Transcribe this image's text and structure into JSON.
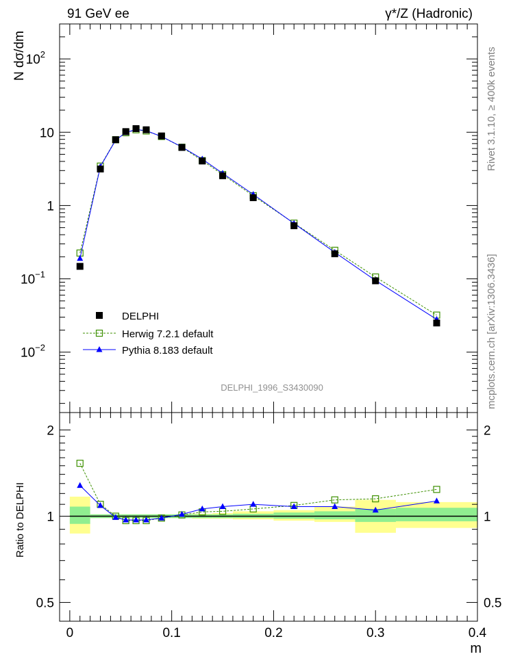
{
  "header": {
    "left_title": "91 GeV ee",
    "right_title": "γ*/Z (Hadronic)"
  },
  "side_labels": {
    "rivet": "Rivet 3.1.10, ≥ 400k events",
    "mcplots": "mcplots.cern.ch [arXiv:1306.3436]"
  },
  "watermark": "DELPHI_1996_S3430090",
  "chart_data": [
    {
      "type": "scatter",
      "panel": "main",
      "ylabel": "N dσ/dm",
      "yscale": "log",
      "ylim": [
        0.0015,
        300
      ],
      "xlim": [
        -0.01,
        0.4
      ],
      "ytick_labels": [
        {
          "value": 0.01,
          "base": "10",
          "exp": "−2"
        },
        {
          "value": 0.1,
          "base": "10",
          "exp": "−1"
        },
        {
          "value": 1,
          "base": "1",
          "exp": ""
        },
        {
          "value": 10,
          "base": "10",
          "exp": ""
        },
        {
          "value": 100,
          "base": "10",
          "exp": "2"
        }
      ],
      "legend": [
        "DELPHI",
        "Herwig 7.2.1 default",
        "Pythia 8.183 default"
      ],
      "x": [
        0.01,
        0.03,
        0.045,
        0.055,
        0.065,
        0.075,
        0.09,
        0.11,
        0.13,
        0.15,
        0.18,
        0.22,
        0.26,
        0.3,
        0.36
      ],
      "series": [
        {
          "name": "DELPHI",
          "color": "#000000",
          "marker": "square-filled",
          "values": [
            0.148,
            3.15,
            7.9,
            10.2,
            11.2,
            10.8,
            8.9,
            6.2,
            4.05,
            2.55,
            1.28,
            0.53,
            0.22,
            0.094,
            0.025
          ]
        },
        {
          "name": "Herwig 7.2.1 default",
          "color": "#3c8f00",
          "marker": "square-open",
          "line": "dashed",
          "values": [
            0.225,
            3.45,
            7.9,
            9.85,
            10.8,
            10.4,
            8.75,
            6.25,
            4.1,
            2.65,
            1.36,
            0.575,
            0.245,
            0.106,
            0.032
          ]
        },
        {
          "name": "Pythia 8.183 default",
          "color": "#0000ff",
          "marker": "triangle-filled",
          "line": "solid",
          "values": [
            0.19,
            3.4,
            7.8,
            9.9,
            10.9,
            10.5,
            8.75,
            6.3,
            4.3,
            2.75,
            1.42,
            0.57,
            0.23,
            0.095,
            0.028
          ]
        }
      ]
    },
    {
      "type": "scatter",
      "panel": "ratio",
      "ylabel": "Ratio to DELPHI",
      "xlabel": "m",
      "ylim": [
        0.43,
        2.3
      ],
      "yticks": [
        0.5,
        1,
        2
      ],
      "ytick_labels": [
        "0.5",
        "1",
        "2"
      ],
      "xlim": [
        -0.01,
        0.4
      ],
      "xticks": [
        0,
        0.1,
        0.2,
        0.3,
        0.4
      ],
      "xtick_labels": [
        "0",
        "0.1",
        "0.2",
        "0.3",
        "0.4"
      ],
      "uncertainty_bands": {
        "bins": [
          [
            0.0,
            0.02
          ],
          [
            0.02,
            0.04
          ],
          [
            0.04,
            0.05
          ],
          [
            0.05,
            0.06
          ],
          [
            0.06,
            0.07
          ],
          [
            0.07,
            0.08
          ],
          [
            0.08,
            0.1
          ],
          [
            0.1,
            0.12
          ],
          [
            0.12,
            0.14
          ],
          [
            0.14,
            0.16
          ],
          [
            0.16,
            0.2
          ],
          [
            0.2,
            0.24
          ],
          [
            0.24,
            0.28
          ],
          [
            0.28,
            0.32
          ],
          [
            0.32,
            0.4
          ]
        ],
        "stat_low": [
          0.94,
          0.985,
          0.985,
          0.985,
          0.985,
          0.985,
          0.985,
          0.985,
          0.985,
          0.985,
          0.985,
          0.98,
          0.975,
          0.955,
          0.96
        ],
        "stat_high": [
          1.08,
          1.015,
          1.015,
          1.015,
          1.015,
          1.015,
          1.015,
          1.015,
          1.015,
          1.015,
          1.02,
          1.03,
          1.04,
          1.06,
          1.07
        ],
        "total_low": [
          0.87,
          0.985,
          0.985,
          0.985,
          0.985,
          0.985,
          0.985,
          0.985,
          0.98,
          0.98,
          0.975,
          0.965,
          0.955,
          0.875,
          0.91
        ],
        "total_high": [
          1.17,
          1.015,
          1.015,
          1.015,
          1.015,
          1.015,
          1.015,
          1.015,
          1.02,
          1.025,
          1.04,
          1.05,
          1.08,
          1.14,
          1.12
        ],
        "stat_color": "#90ee90",
        "total_color": "#ffff90"
      },
      "x": [
        0.01,
        0.03,
        0.045,
        0.055,
        0.065,
        0.075,
        0.09,
        0.11,
        0.13,
        0.15,
        0.18,
        0.22,
        0.26,
        0.3,
        0.36
      ],
      "series": [
        {
          "name": "Herwig 7.2.1 default",
          "color": "#3c8f00",
          "marker": "square-open",
          "line": "dashed",
          "values": [
            1.53,
            1.1,
            1.0,
            0.965,
            0.965,
            0.965,
            0.985,
            1.01,
            1.035,
            1.04,
            1.06,
            1.09,
            1.14,
            1.15,
            1.24
          ]
        },
        {
          "name": "Pythia 8.183 default",
          "color": "#0000ff",
          "marker": "triangle-filled",
          "line": "solid",
          "values": [
            1.28,
            1.09,
            0.99,
            0.97,
            0.97,
            0.97,
            0.985,
            1.015,
            1.06,
            1.08,
            1.1,
            1.08,
            1.08,
            1.05,
            1.13
          ]
        }
      ]
    }
  ]
}
